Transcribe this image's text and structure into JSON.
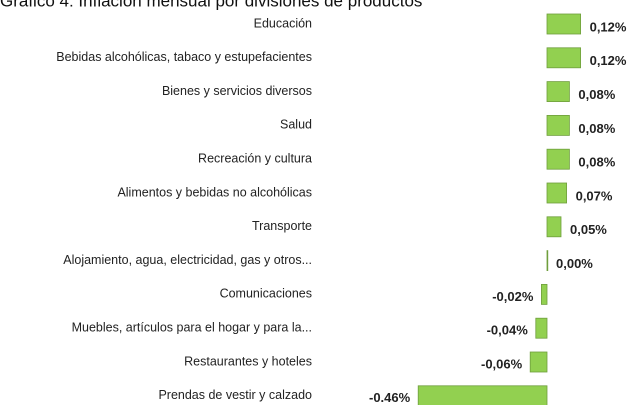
{
  "chart_data": {
    "type": "bar",
    "orientation": "horizontal",
    "title": "Gráfico 4: Inflación mensual por divisiones de productos",
    "categories": [
      "Educación",
      "Bebidas alcohólicas, tabaco y estupefacientes",
      "Bienes y servicios diversos",
      "Salud",
      "Recreación y cultura",
      "Alimentos y bebidas no alcohólicas",
      "Transporte",
      "Alojamiento, agua, electricidad, gas y otros...",
      "Comunicaciones",
      "Muebles, artículos para el hogar y para la...",
      "Restaurantes y hoteles",
      "Prendas de vestir y calzado"
    ],
    "values": [
      0.12,
      0.12,
      0.08,
      0.08,
      0.08,
      0.07,
      0.05,
      0.0,
      -0.02,
      -0.04,
      -0.06,
      -0.46
    ],
    "value_labels": [
      "0,12%",
      "0,12%",
      "0,08%",
      "0,08%",
      "0,08%",
      "0,07%",
      "0,05%",
      "0,00%",
      "-0,02%",
      "-0,04%",
      "-0,06%",
      "-0.46%"
    ],
    "color": "#92d050"
  }
}
